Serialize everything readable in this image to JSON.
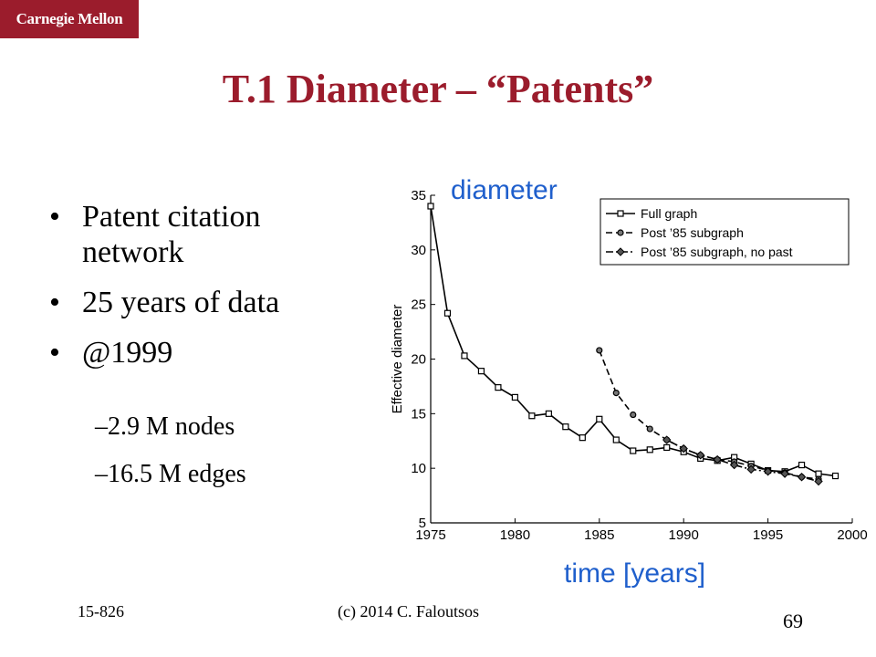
{
  "logo": "Carnegie Mellon",
  "title": "T.1 Diameter – “Patents”",
  "bullets": [
    "Patent citation network",
    "25 years of data",
    "@1999"
  ],
  "sub_bullets": [
    "–2.9 M nodes",
    "–16.5 M edges"
  ],
  "annotations": {
    "y": "diameter",
    "x": "time [years]"
  },
  "footer": {
    "course": "15-826",
    "copyright": "(c) 2014 C. Faloutsos",
    "page": "69"
  },
  "colors": {
    "accent": "#9b1c2c",
    "annotation": "#1f5fcc"
  },
  "chart_data": {
    "type": "line",
    "ylabel": "Effective diameter",
    "xlim": [
      1975,
      2000
    ],
    "ylim": [
      5,
      35
    ],
    "xticks": [
      1975,
      1980,
      1985,
      1990,
      1995,
      2000
    ],
    "yticks": [
      5,
      10,
      15,
      20,
      25,
      30,
      35
    ],
    "legend_position": "top-right",
    "series": [
      {
        "name": "Full graph",
        "style": "solid",
        "marker": "square",
        "x": [
          1975,
          1976,
          1977,
          1978,
          1979,
          1980,
          1981,
          1982,
          1983,
          1984,
          1985,
          1986,
          1987,
          1988,
          1989,
          1990,
          1991,
          1992,
          1993,
          1994,
          1995,
          1996,
          1997,
          1998,
          1999
        ],
        "y": [
          34,
          24.2,
          20.3,
          18.9,
          17.4,
          16.5,
          14.8,
          15,
          13.8,
          12.8,
          14.5,
          12.6,
          11.6,
          11.7,
          11.9,
          11.5,
          10.9,
          10.7,
          11,
          10.4,
          9.8,
          9.7,
          10.3,
          9.5,
          9.3
        ]
      },
      {
        "name": "Post ’85 subgraph",
        "style": "dashed",
        "marker": "circle",
        "x": [
          1985,
          1986,
          1987,
          1988,
          1989,
          1990,
          1991,
          1992,
          1993,
          1994,
          1995,
          1996,
          1997,
          1998
        ],
        "y": [
          20.8,
          16.9,
          14.9,
          13.6,
          12.6,
          11.8,
          11.2,
          10.8,
          10.6,
          10.2,
          9.8,
          9.6,
          9.2,
          9.0
        ]
      },
      {
        "name": "Post ’85 subgraph, no past",
        "style": "dashdot",
        "marker": "diamond",
        "x": [
          1989,
          1990,
          1991,
          1992,
          1993,
          1994,
          1995,
          1996,
          1997,
          1998
        ],
        "y": [
          12.6,
          11.8,
          11.2,
          10.8,
          10.3,
          9.9,
          9.7,
          9.5,
          9.2,
          8.8
        ]
      }
    ]
  }
}
